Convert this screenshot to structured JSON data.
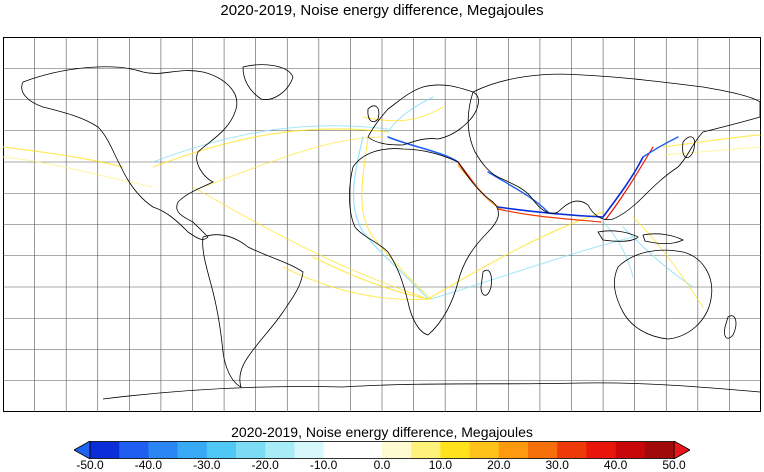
{
  "title": "2020-2019, Noise energy difference, Megajoules",
  "colorbar": {
    "title": "2020-2019, Noise energy difference, Megajoules",
    "labels": [
      "-50.0",
      "-40.0",
      "-30.0",
      "-20.0",
      "-10.0",
      "0.0",
      "10.0",
      "20.0",
      "30.0",
      "40.0",
      "50.0"
    ],
    "bins": [
      "#0a2fd8",
      "#1e5ef0",
      "#2a86f3",
      "#38aaf5",
      "#4fc8f5",
      "#7ddcf5",
      "#a8ecf8",
      "#d6f7fb",
      "#ffffff",
      "#ffffff",
      "#fffbd0",
      "#fff27a",
      "#ffe21c",
      "#ffc21a",
      "#ff9a10",
      "#f5700a",
      "#ee3a08",
      "#e8160a",
      "#c80808",
      "#a00a0a"
    ],
    "under_color": "#1e64f0",
    "over_color": "#e8161a"
  },
  "chart_data": {
    "type": "map",
    "title": "2020-2019, Noise energy difference, Megajoules",
    "colorbar_label": "2020-2019, Noise energy difference, Megajoules",
    "colorbar_range": [
      -50,
      50
    ],
    "colorbar_ticks": [
      -50,
      -40,
      -30,
      -20,
      -10,
      0,
      10,
      20,
      30,
      40,
      50
    ],
    "grid": true,
    "projection": "global equirectangular"
  }
}
